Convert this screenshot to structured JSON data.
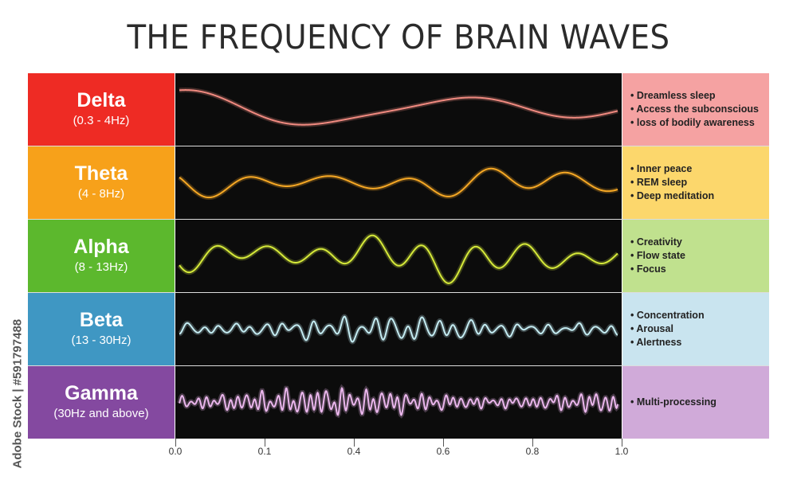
{
  "title": "THE FREQUENCY OF BRAIN WAVES",
  "watermark": "Adobe Stock | #591797488",
  "x_ticks": [
    "0.0",
    "0.1",
    "0.4",
    "0.6",
    "0.8",
    "1.0"
  ],
  "bands": [
    {
      "name": "Delta",
      "range": "(0.3 - 4Hz)",
      "label_color": "#ee2b24",
      "desc_color": "#f5a2a2",
      "wave_color": "#f08a80",
      "effects": [
        "Dreamless sleep",
        "Access the subconscious",
        "loss of bodily awareness"
      ]
    },
    {
      "name": "Theta",
      "range": "(4 - 8Hz)",
      "label_color": "#f7a11a",
      "desc_color": "#fcd76c",
      "wave_color": "#f6a825",
      "effects": [
        "Inner peace",
        "REM sleep",
        "Deep meditation"
      ]
    },
    {
      "name": "Alpha",
      "range": "(8 - 13Hz)",
      "label_color": "#5cb82d",
      "desc_color": "#c0e18e",
      "wave_color": "#d6ea3a",
      "effects": [
        "Creativity",
        "Flow state",
        "Focus"
      ]
    },
    {
      "name": "Beta",
      "range": "(13 - 30Hz)",
      "label_color": "#3f97c3",
      "desc_color": "#c9e4ef",
      "wave_color": "#c4ecf2",
      "effects": [
        "Concentration",
        "Arousal",
        "Alertness"
      ]
    },
    {
      "name": "Gamma",
      "range": "(30Hz and above)",
      "label_color": "#8449a0",
      "desc_color": "#d0aad9",
      "wave_color": "#eab6ec",
      "effects": [
        "Multi-processing"
      ]
    }
  ]
}
